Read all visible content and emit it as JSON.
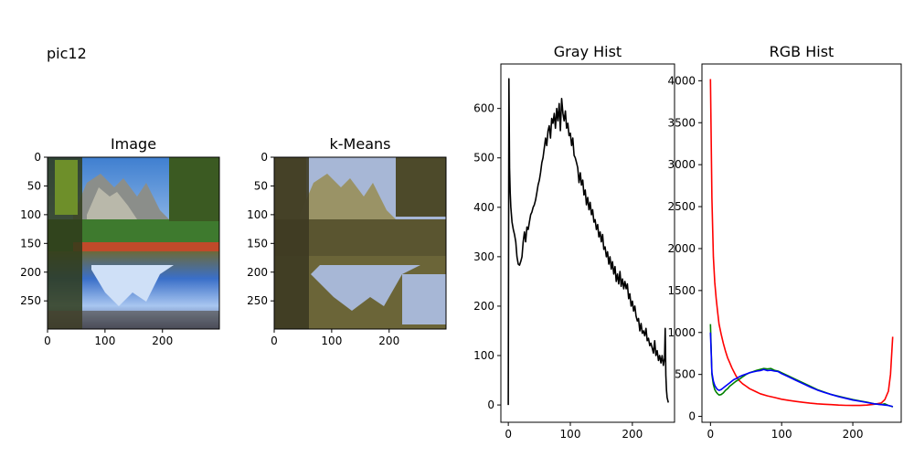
{
  "figure": {
    "suptitle": "pic12"
  },
  "colors": {
    "gray_line": "#000000",
    "red": "#ff0000",
    "green": "#008000",
    "blue": "#0000ff"
  },
  "chart_data": [
    {
      "type": "image",
      "title": "Image",
      "xlim": [
        0,
        299
      ],
      "ylim": [
        299,
        0
      ],
      "xticks": [
        0,
        100,
        200
      ],
      "yticks": [
        0,
        50,
        100,
        150,
        200,
        250
      ]
    },
    {
      "type": "image",
      "title": "k-Means",
      "xlim": [
        0,
        299
      ],
      "ylim": [
        299,
        0
      ],
      "xticks": [
        0,
        100,
        200
      ],
      "yticks": [
        0,
        50,
        100,
        150,
        200,
        250
      ]
    },
    {
      "type": "line",
      "title": "Gray Hist",
      "xlim": [
        -12,
        268
      ],
      "ylim": [
        -35,
        690
      ],
      "xticks": [
        0,
        100,
        200
      ],
      "yticks": [
        0,
        100,
        200,
        300,
        400,
        500,
        600
      ],
      "series": [
        {
          "color": "#000000",
          "points": [
            [
              0,
              0
            ],
            [
              1,
              660
            ],
            [
              2,
              480
            ],
            [
              3,
              430
            ],
            [
              4,
              400
            ],
            [
              6,
              370
            ],
            [
              8,
              355
            ],
            [
              10,
              345
            ],
            [
              12,
              330
            ],
            [
              14,
              300
            ],
            [
              16,
              285
            ],
            [
              18,
              283
            ],
            [
              20,
              290
            ],
            [
              22,
              300
            ],
            [
              24,
              330
            ],
            [
              26,
              350
            ],
            [
              28,
              330
            ],
            [
              30,
              360
            ],
            [
              32,
              355
            ],
            [
              34,
              370
            ],
            [
              36,
              385
            ],
            [
              38,
              390
            ],
            [
              40,
              400
            ],
            [
              42,
              405
            ],
            [
              44,
              415
            ],
            [
              46,
              430
            ],
            [
              48,
              445
            ],
            [
              50,
              455
            ],
            [
              52,
              470
            ],
            [
              54,
              490
            ],
            [
              56,
              500
            ],
            [
              58,
              520
            ],
            [
              60,
              540
            ],
            [
              62,
              525
            ],
            [
              64,
              555
            ],
            [
              66,
              565
            ],
            [
              68,
              540
            ],
            [
              70,
              580
            ],
            [
              72,
              570
            ],
            [
              74,
              590
            ],
            [
              76,
              560
            ],
            [
              78,
              600
            ],
            [
              80,
              575
            ],
            [
              82,
              610
            ],
            [
              84,
              555
            ],
            [
              86,
              620
            ],
            [
              88,
              590
            ],
            [
              90,
              575
            ],
            [
              92,
              595
            ],
            [
              94,
              560
            ],
            [
              96,
              570
            ],
            [
              98,
              545
            ],
            [
              100,
              550
            ],
            [
              102,
              525
            ],
            [
              104,
              540
            ],
            [
              106,
              505
            ],
            [
              108,
              500
            ],
            [
              110,
              490
            ],
            [
              112,
              480
            ],
            [
              114,
              450
            ],
            [
              116,
              470
            ],
            [
              118,
              445
            ],
            [
              120,
              455
            ],
            [
              122,
              425
            ],
            [
              124,
              435
            ],
            [
              126,
              405
            ],
            [
              128,
              420
            ],
            [
              130,
              395
            ],
            [
              132,
              410
            ],
            [
              134,
              385
            ],
            [
              136,
              395
            ],
            [
              138,
              370
            ],
            [
              140,
              375
            ],
            [
              142,
              355
            ],
            [
              144,
              365
            ],
            [
              146,
              340
            ],
            [
              148,
              350
            ],
            [
              150,
              330
            ],
            [
              152,
              345
            ],
            [
              154,
              315
            ],
            [
              156,
              320
            ],
            [
              158,
              300
            ],
            [
              160,
              310
            ],
            [
              162,
              285
            ],
            [
              164,
              300
            ],
            [
              166,
              275
            ],
            [
              168,
              290
            ],
            [
              170,
              265
            ],
            [
              172,
              280
            ],
            [
              174,
              250
            ],
            [
              176,
              265
            ],
            [
              178,
              245
            ],
            [
              180,
              270
            ],
            [
              182,
              240
            ],
            [
              184,
              255
            ],
            [
              186,
              235
            ],
            [
              188,
              250
            ],
            [
              190,
              235
            ],
            [
              192,
              245
            ],
            [
              194,
              215
            ],
            [
              196,
              225
            ],
            [
              198,
              200
            ],
            [
              200,
              210
            ],
            [
              202,
              190
            ],
            [
              204,
              200
            ],
            [
              206,
              180
            ],
            [
              208,
              170
            ],
            [
              210,
              175
            ],
            [
              212,
              150
            ],
            [
              214,
              165
            ],
            [
              216,
              145
            ],
            [
              218,
              150
            ],
            [
              220,
              140
            ],
            [
              222,
              155
            ],
            [
              224,
              130
            ],
            [
              226,
              135
            ],
            [
              228,
              120
            ],
            [
              230,
              125
            ],
            [
              232,
              115
            ],
            [
              234,
              105
            ],
            [
              236,
              130
            ],
            [
              238,
              100
            ],
            [
              240,
              110
            ],
            [
              242,
              90
            ],
            [
              244,
              100
            ],
            [
              246,
              85
            ],
            [
              248,
              100
            ],
            [
              250,
              80
            ],
            [
              252,
              95
            ],
            [
              253,
              155
            ],
            [
              254,
              60
            ],
            [
              255,
              30
            ],
            [
              256,
              15
            ],
            [
              258,
              5
            ]
          ]
        }
      ]
    },
    {
      "type": "line",
      "title": "RGB Hist",
      "xlim": [
        -12,
        268
      ],
      "ylim": [
        -70,
        4200
      ],
      "xticks": [
        0,
        100,
        200
      ],
      "yticks": [
        0,
        500,
        1000,
        1500,
        2000,
        2500,
        3000,
        3500,
        4000
      ],
      "series": [
        {
          "color": "#ff0000",
          "points": [
            [
              0,
              4020
            ],
            [
              2,
              2600
            ],
            [
              4,
              1900
            ],
            [
              6,
              1600
            ],
            [
              8,
              1400
            ],
            [
              10,
              1250
            ],
            [
              12,
              1100
            ],
            [
              15,
              980
            ],
            [
              18,
              870
            ],
            [
              21,
              780
            ],
            [
              24,
              700
            ],
            [
              27,
              640
            ],
            [
              30,
              580
            ],
            [
              33,
              530
            ],
            [
              36,
              480
            ],
            [
              40,
              430
            ],
            [
              45,
              390
            ],
            [
              50,
              360
            ],
            [
              55,
              330
            ],
            [
              60,
              310
            ],
            [
              65,
              290
            ],
            [
              70,
              270
            ],
            [
              80,
              245
            ],
            [
              90,
              225
            ],
            [
              100,
              205
            ],
            [
              110,
              190
            ],
            [
              120,
              178
            ],
            [
              130,
              168
            ],
            [
              140,
              158
            ],
            [
              150,
              150
            ],
            [
              160,
              145
            ],
            [
              170,
              140
            ],
            [
              180,
              135
            ],
            [
              190,
              132
            ],
            [
              200,
              130
            ],
            [
              210,
              130
            ],
            [
              220,
              135
            ],
            [
              230,
              145
            ],
            [
              240,
              160
            ],
            [
              245,
              200
            ],
            [
              250,
              300
            ],
            [
              253,
              500
            ],
            [
              255,
              800
            ],
            [
              256,
              950
            ]
          ]
        },
        {
          "color": "#008000",
          "points": [
            [
              0,
              1100
            ],
            [
              2,
              500
            ],
            [
              4,
              380
            ],
            [
              6,
              320
            ],
            [
              8,
              290
            ],
            [
              10,
              270
            ],
            [
              12,
              255
            ],
            [
              15,
              260
            ],
            [
              18,
              280
            ],
            [
              21,
              310
            ],
            [
              24,
              330
            ],
            [
              27,
              360
            ],
            [
              30,
              380
            ],
            [
              33,
              400
            ],
            [
              36,
              420
            ],
            [
              40,
              440
            ],
            [
              45,
              470
            ],
            [
              50,
              500
            ],
            [
              55,
              520
            ],
            [
              60,
              535
            ],
            [
              65,
              550
            ],
            [
              70,
              560
            ],
            [
              75,
              570
            ],
            [
              80,
              565
            ],
            [
              85,
              570
            ],
            [
              90,
              550
            ],
            [
              95,
              540
            ],
            [
              100,
              520
            ],
            [
              110,
              480
            ],
            [
              120,
              440
            ],
            [
              130,
              400
            ],
            [
              140,
              360
            ],
            [
              150,
              320
            ],
            [
              160,
              290
            ],
            [
              170,
              260
            ],
            [
              180,
              240
            ],
            [
              190,
              220
            ],
            [
              200,
              200
            ],
            [
              210,
              185
            ],
            [
              220,
              170
            ],
            [
              230,
              150
            ],
            [
              240,
              140
            ],
            [
              245,
              150
            ],
            [
              250,
              130
            ],
            [
              255,
              120
            ],
            [
              256,
              110
            ]
          ]
        },
        {
          "color": "#0000ff",
          "points": [
            [
              0,
              1000
            ],
            [
              2,
              520
            ],
            [
              4,
              420
            ],
            [
              6,
              370
            ],
            [
              8,
              340
            ],
            [
              10,
              320
            ],
            [
              12,
              310
            ],
            [
              15,
              320
            ],
            [
              18,
              340
            ],
            [
              21,
              360
            ],
            [
              24,
              380
            ],
            [
              27,
              400
            ],
            [
              30,
              420
            ],
            [
              33,
              440
            ],
            [
              36,
              450
            ],
            [
              40,
              470
            ],
            [
              45,
              490
            ],
            [
              50,
              505
            ],
            [
              55,
              520
            ],
            [
              60,
              530
            ],
            [
              65,
              540
            ],
            [
              70,
              545
            ],
            [
              75,
              560
            ],
            [
              80,
              545
            ],
            [
              85,
              550
            ],
            [
              90,
              540
            ],
            [
              95,
              535
            ],
            [
              100,
              510
            ],
            [
              110,
              470
            ],
            [
              120,
              430
            ],
            [
              130,
              390
            ],
            [
              140,
              350
            ],
            [
              150,
              315
            ],
            [
              160,
              285
            ],
            [
              170,
              260
            ],
            [
              180,
              235
            ],
            [
              190,
              215
            ],
            [
              200,
              195
            ],
            [
              210,
              180
            ],
            [
              220,
              165
            ],
            [
              230,
              150
            ],
            [
              240,
              140
            ],
            [
              245,
              135
            ],
            [
              250,
              130
            ],
            [
              255,
              120
            ],
            [
              256,
              115
            ]
          ]
        }
      ]
    }
  ]
}
